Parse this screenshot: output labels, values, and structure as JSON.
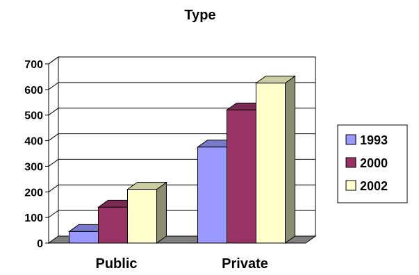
{
  "chart_data": {
    "type": "bar",
    "title": "Type",
    "categories": [
      "Public",
      "Private"
    ],
    "series": [
      {
        "name": "1993",
        "values": [
          45,
          375
        ],
        "color": "#9999ff"
      },
      {
        "name": "2000",
        "values": [
          140,
          520
        ],
        "color": "#993366"
      },
      {
        "name": "2002",
        "values": [
          210,
          625
        ],
        "color": "#ffffcc"
      }
    ],
    "ylim": [
      0,
      700
    ],
    "yticks": [
      0,
      100,
      200,
      300,
      400,
      500,
      600,
      700
    ],
    "grid": "horizontal",
    "legend_position": "right",
    "style": "3d"
  }
}
